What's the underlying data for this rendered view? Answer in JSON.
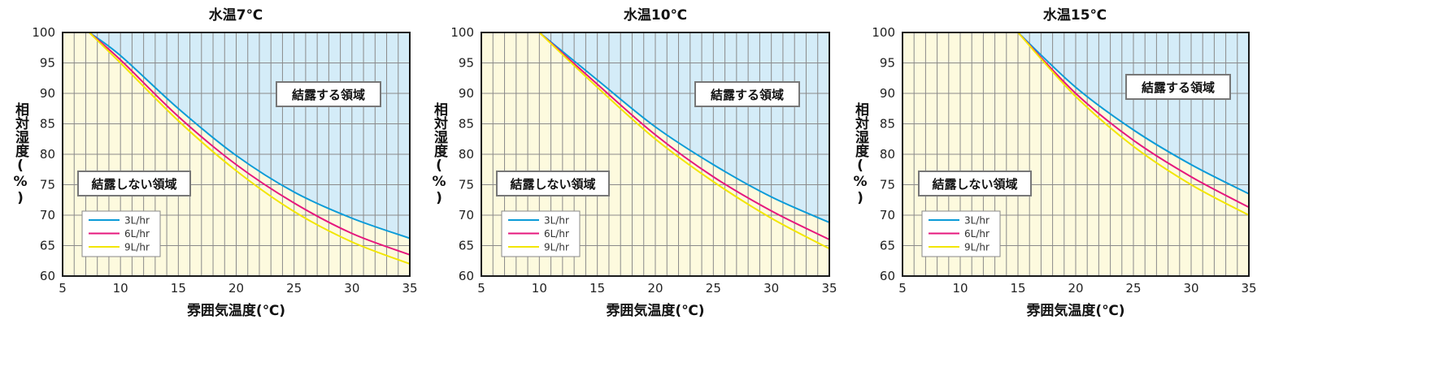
{
  "chart_data": [
    {
      "type": "line",
      "title": "水温7℃",
      "xlabel": "雰囲気温度(℃)",
      "ylabel": "相対湿度(%)",
      "xlim": [
        5,
        35
      ],
      "ylim": [
        60,
        100
      ],
      "xticks": [
        "5",
        "10",
        "15",
        "20",
        "25",
        "30",
        "35"
      ],
      "yticks": [
        "60",
        "65",
        "70",
        "75",
        "80",
        "85",
        "90",
        "95",
        "100"
      ],
      "x_minor_step": 1,
      "y_minor_step": 5,
      "grid": true,
      "legend_position": "bottom-left",
      "region_above_label": "結露する領域",
      "region_below_label": "結露しない領域",
      "region_above_color": "#d4ecf8",
      "region_below_color": "#fdfade",
      "series": [
        {
          "name": "3L/hr",
          "color": "#0a9bd8",
          "x": [
            7.3,
            10,
            15,
            20,
            25,
            30,
            35
          ],
          "y": [
            100,
            96.2,
            87.5,
            79.8,
            73.8,
            69.5,
            66.2
          ]
        },
        {
          "name": "6L/hr",
          "color": "#e6177d",
          "x": [
            7.3,
            10,
            15,
            20,
            25,
            30,
            35
          ],
          "y": [
            100,
            95.5,
            86.2,
            78.3,
            72.0,
            67.0,
            63.5
          ]
        },
        {
          "name": "9L/hr",
          "color": "#f2e600",
          "x": [
            7.3,
            10,
            15,
            20,
            25,
            30,
            35
          ],
          "y": [
            100,
            95.0,
            85.5,
            77.3,
            70.6,
            65.6,
            62.0
          ]
        }
      ]
    },
    {
      "type": "line",
      "title": "水温10℃",
      "xlabel": "雰囲気温度(℃)",
      "ylabel": "相対湿度(%)",
      "xlim": [
        5,
        35
      ],
      "ylim": [
        60,
        100
      ],
      "xticks": [
        "5",
        "10",
        "15",
        "20",
        "25",
        "30",
        "35"
      ],
      "yticks": [
        "60",
        "65",
        "70",
        "75",
        "80",
        "85",
        "90",
        "95",
        "100"
      ],
      "x_minor_step": 1,
      "y_minor_step": 5,
      "grid": true,
      "legend_position": "bottom-left",
      "region_above_label": "結露する領域",
      "region_below_label": "結露しない領域",
      "region_above_color": "#d4ecf8",
      "region_below_color": "#fdfade",
      "series": [
        {
          "name": "3L/hr",
          "color": "#0a9bd8",
          "x": [
            10,
            15,
            20,
            25,
            30,
            35
          ],
          "y": [
            100,
            92.2,
            84.5,
            78.3,
            73.0,
            68.8
          ]
        },
        {
          "name": "6L/hr",
          "color": "#e6177d",
          "x": [
            10,
            15,
            20,
            25,
            30,
            35
          ],
          "y": [
            100,
            91.5,
            83.2,
            76.3,
            70.7,
            66.0
          ]
        },
        {
          "name": "9L/hr",
          "color": "#f2e600",
          "x": [
            10,
            15,
            20,
            25,
            30,
            35
          ],
          "y": [
            100,
            91.0,
            82.5,
            75.5,
            69.5,
            64.5
          ]
        }
      ]
    },
    {
      "type": "line",
      "title": "水温15℃",
      "xlabel": "雰囲気温度(℃)",
      "ylabel": "相対湿度(%)",
      "xlim": [
        5,
        35
      ],
      "ylim": [
        60,
        100
      ],
      "xticks": [
        "5",
        "10",
        "15",
        "20",
        "25",
        "30",
        "35"
      ],
      "yticks": [
        "60",
        "65",
        "70",
        "75",
        "80",
        "85",
        "90",
        "95",
        "100"
      ],
      "x_minor_step": 1,
      "y_minor_step": 5,
      "grid": true,
      "legend_position": "bottom-left",
      "region_above_label": "結露する領域",
      "region_below_label": "結露しない領域",
      "region_above_color": "#d4ecf8",
      "region_below_color": "#fdfade",
      "series": [
        {
          "name": "3L/hr",
          "color": "#0a9bd8",
          "x": [
            15,
            20,
            25,
            30,
            35
          ],
          "y": [
            100,
            91.0,
            84.0,
            78.3,
            73.5
          ]
        },
        {
          "name": "6L/hr",
          "color": "#e6177d",
          "x": [
            15,
            20,
            25,
            30,
            35
          ],
          "y": [
            100,
            90.0,
            82.3,
            76.3,
            71.3
          ]
        },
        {
          "name": "9L/hr",
          "color": "#f2e600",
          "x": [
            15,
            20,
            25,
            30,
            35
          ],
          "y": [
            100,
            89.5,
            81.3,
            75.0,
            70.0
          ]
        }
      ]
    }
  ]
}
